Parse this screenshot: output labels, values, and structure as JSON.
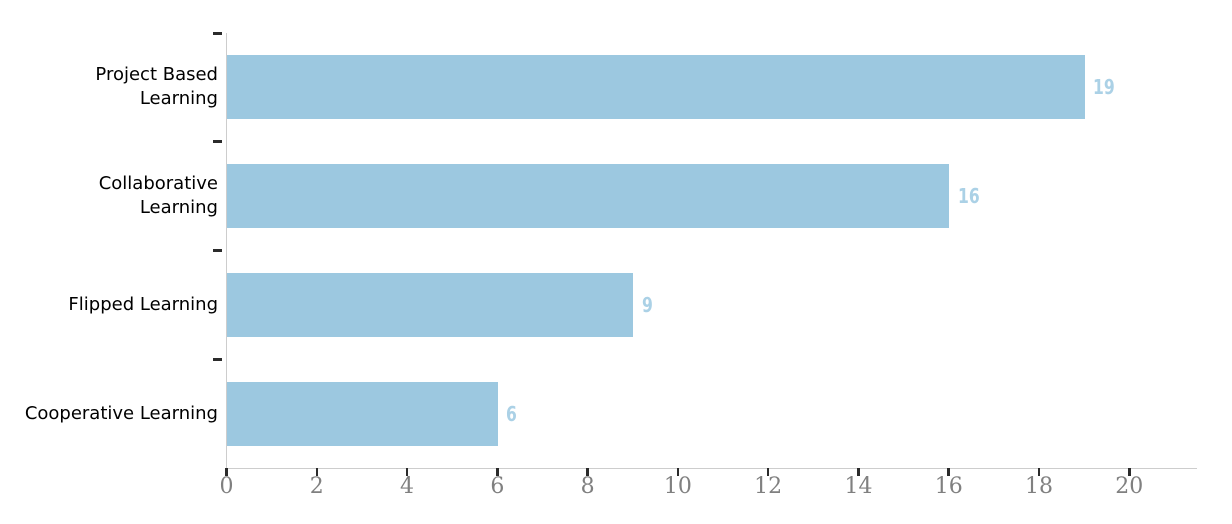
{
  "chart_data": {
    "type": "bar",
    "orientation": "horizontal",
    "title": "",
    "xlabel": "",
    "ylabel": "",
    "categories": [
      "Project Based Learning",
      "Collaborative Learning",
      "Flipped Learning",
      "Cooperative Learning"
    ],
    "category_display": [
      "Project Based\nLearning",
      "Collaborative\nLearning",
      "Flipped Learning",
      "Cooperative Learning"
    ],
    "values": [
      19,
      16,
      9,
      6
    ],
    "bar_value_labels": [
      "19",
      "16",
      "9",
      "6"
    ],
    "xlim": [
      0,
      21.5
    ],
    "x_ticks": [
      0,
      2,
      4,
      6,
      8,
      10,
      12,
      14,
      16,
      18,
      20
    ],
    "grid": false,
    "legend": false,
    "colors": {
      "bar_fill": "#9cc8e0",
      "value_label": "#abd1e6",
      "axis_line": "#cdcdcd",
      "tick_mark": "#2b2b2b",
      "x_tick_label": "#808080",
      "category_label": "#000000",
      "background": "#ffffff"
    }
  }
}
